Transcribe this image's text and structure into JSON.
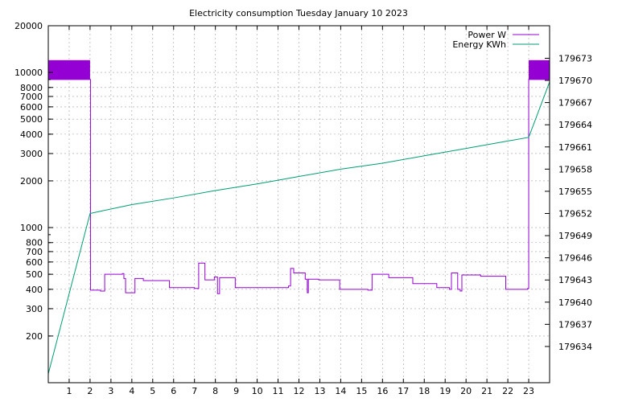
{
  "chart_data": {
    "type": "line",
    "title": "Electricity consumption Tuesday January 10 2023",
    "xlabel": "",
    "ylabel": "",
    "x_ticks": [
      1,
      2,
      3,
      4,
      5,
      6,
      7,
      8,
      9,
      10,
      11,
      12,
      13,
      14,
      15,
      16,
      17,
      18,
      19,
      20,
      21,
      22,
      23
    ],
    "xlim": [
      0,
      24
    ],
    "y_left": {
      "scale": "log",
      "lim": [
        100,
        20000
      ],
      "ticks": [
        {
          "v": 200,
          "label": "200"
        },
        {
          "v": 300,
          "label": "300"
        },
        {
          "v": 400,
          "label": "400"
        },
        {
          "v": 500,
          "label": "500"
        },
        {
          "v": 600,
          "label": "600"
        },
        {
          "v": 700,
          "label": "700"
        },
        {
          "v": 800,
          "label": "800"
        },
        {
          "v": 1000,
          "label": "1000"
        },
        {
          "v": 2000,
          "label": "2000"
        },
        {
          "v": 3000,
          "label": "3000"
        },
        {
          "v": 4000,
          "label": "4000"
        },
        {
          "v": 5000,
          "label": "5000"
        },
        {
          "v": 6000,
          "label": "6000"
        },
        {
          "v": 7000,
          "label": "7000"
        },
        {
          "v": 8000,
          "label": "8000"
        },
        {
          "v": 10000,
          "label": "10000"
        },
        {
          "v": 20000,
          "label": "20000"
        }
      ]
    },
    "y_right": {
      "scale": "linear",
      "lim": [
        179629.1,
        179677.4
      ],
      "ticks": [
        179634,
        179637,
        179640,
        179643,
        179646,
        179649,
        179652,
        179655,
        179658,
        179661,
        179664,
        179667,
        179670,
        179673
      ]
    },
    "grid": true,
    "legend": "top-right",
    "series": [
      {
        "name": "Power W",
        "axis": "left",
        "color": "#9400d3",
        "style": "step",
        "points": [
          [
            0,
            9000
          ],
          [
            2,
            9000
          ],
          [
            2.02,
            395
          ],
          [
            2.5,
            390
          ],
          [
            2.7,
            500
          ],
          [
            3.55,
            505
          ],
          [
            3.62,
            470
          ],
          [
            3.7,
            380
          ],
          [
            4.15,
            470
          ],
          [
            4.55,
            455
          ],
          [
            5.8,
            410
          ],
          [
            7.0,
            405
          ],
          [
            7.2,
            590
          ],
          [
            7.5,
            460
          ],
          [
            7.95,
            480
          ],
          [
            8.1,
            375
          ],
          [
            8.2,
            475
          ],
          [
            8.95,
            410
          ],
          [
            11.5,
            420
          ],
          [
            11.6,
            545
          ],
          [
            11.75,
            510
          ],
          [
            12.3,
            465
          ],
          [
            12.4,
            380
          ],
          [
            12.45,
            465
          ],
          [
            12.95,
            460
          ],
          [
            13.95,
            400
          ],
          [
            15.3,
            395
          ],
          [
            15.5,
            500
          ],
          [
            16.3,
            475
          ],
          [
            17.45,
            435
          ],
          [
            18.6,
            410
          ],
          [
            19.2,
            400
          ],
          [
            19.3,
            510
          ],
          [
            19.6,
            400
          ],
          [
            19.72,
            390
          ],
          [
            19.8,
            495
          ],
          [
            20.7,
            485
          ],
          [
            21.9,
            400
          ],
          [
            22.95,
            405
          ],
          [
            23.0,
            9000
          ],
          [
            24.0,
            9000
          ]
        ],
        "filled_bands": [
          {
            "x": [
              0,
              2
            ],
            "y": [
              9000,
              12000
            ]
          },
          {
            "x": [
              23,
              24
            ],
            "y": [
              9000,
              12000
            ]
          }
        ]
      },
      {
        "name": "Energy KWh",
        "axis": "right",
        "color": "#009e73",
        "style": "line",
        "points": [
          [
            0,
            179630.3
          ],
          [
            2,
            179652.0
          ],
          [
            4,
            179653.2
          ],
          [
            6,
            179654.1
          ],
          [
            8,
            179655.1
          ],
          [
            10,
            179656.0
          ],
          [
            12,
            179657.0
          ],
          [
            14,
            179658.0
          ],
          [
            16,
            179658.8
          ],
          [
            18,
            179659.8
          ],
          [
            20,
            179660.8
          ],
          [
            22,
            179661.8
          ],
          [
            23,
            179662.3
          ],
          [
            24,
            179669.8
          ]
        ]
      }
    ]
  }
}
